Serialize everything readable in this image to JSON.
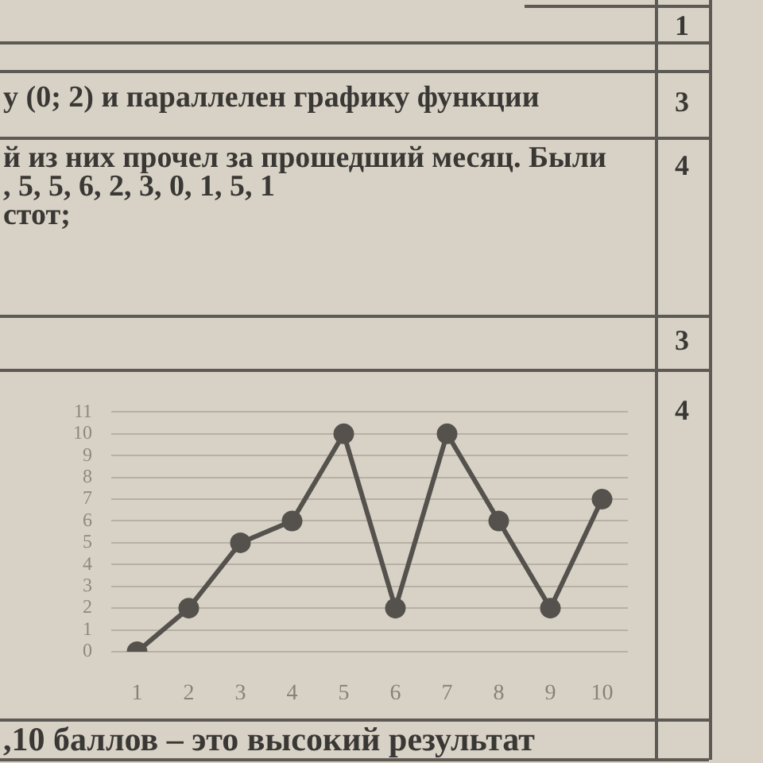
{
  "chart_data": {
    "type": "line",
    "categories": [
      "1",
      "2",
      "3",
      "4",
      "5",
      "6",
      "7",
      "8",
      "9",
      "10"
    ],
    "values": [
      0,
      2,
      5,
      6,
      10,
      2,
      10,
      6,
      2,
      7
    ],
    "color": "#55524e",
    "ylim": [
      0,
      11
    ],
    "yticks": [
      0,
      1,
      2,
      3,
      4,
      5,
      6,
      7,
      8,
      9,
      10,
      11
    ],
    "grid": "y",
    "marker": "circle",
    "annotations": [
      "1",
      "у (0; 2) и параллелен графику функции",
      "3",
      "й из них прочел за прошедший месяц. Были",
      ", 5, 5, 6, 2, 3, 0, 1, 5, 1",
      "4",
      "стот;",
      "3",
      "4",
      ",10 баллов – это высокий результат"
    ]
  }
}
